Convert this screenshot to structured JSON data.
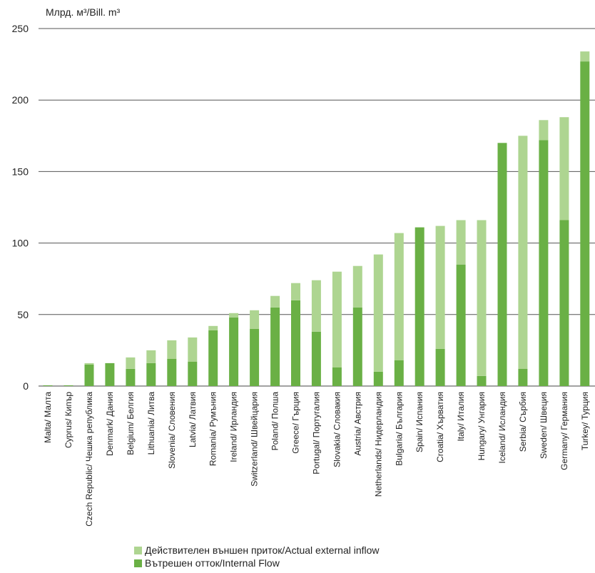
{
  "chart_data": {
    "type": "bar",
    "stacked": true,
    "ylabel": "Млрд. м³/Bill. m³",
    "ylim": [
      0,
      250
    ],
    "yticks": [
      0,
      50,
      100,
      150,
      200,
      250
    ],
    "grid": true,
    "legend_position": "bottom",
    "categories": [
      "Malta/ Малта",
      "Cyprus/ Кипър",
      "Czech Republic/ Чешка република",
      "Denmark/ Дания",
      "Belgium/ Белгия",
      "Lithuania/ Литва",
      "Slovenia/ Словения",
      "Latvia/ Латвия",
      "Romania/ Румъния",
      "Ireland/ Ирландия",
      "Switzerland/ Швейцария",
      "Poland/ Полша",
      "Greece/ Гърция",
      "Portugal/ Португалия",
      "Slovakia/ Словакия",
      "Austria/ Австрия",
      "Netherlands/ Нидерландия",
      "Bulgaria/ България",
      "Spain/ Испания",
      "Croatia/ Хърватия",
      "Italy/ Италия",
      "Hungary/ Унгария",
      "Iceland/ Исландия",
      "Serbia/ Сърбия",
      "Sweden/ Швеция",
      "Germany/ Германия",
      "Turkey/ Турция"
    ],
    "series": [
      {
        "name": "Вътрешен отток/Internal Flow",
        "color": "#6ab045",
        "values": [
          0.5,
          0.5,
          15,
          16,
          12,
          16,
          19,
          17,
          39,
          48,
          40,
          55,
          60,
          38,
          13,
          55,
          10,
          18,
          111,
          26,
          85,
          7,
          170,
          12,
          172,
          116,
          227
        ]
      },
      {
        "name": "Действителен външен приток/Actual external inflow",
        "color": "#aed591",
        "values": [
          0,
          0,
          1,
          0,
          8,
          9,
          13,
          17,
          3,
          3,
          13,
          8,
          12,
          36,
          67,
          29,
          82,
          89,
          0,
          86,
          31,
          109,
          0,
          163,
          14,
          72,
          7
        ]
      }
    ]
  },
  "legend": {
    "items": [
      {
        "label": "Действителен външен приток/Actual external inflow",
        "color": "#aed591"
      },
      {
        "label": "Вътрешен отток/Internal Flow",
        "color": "#6ab045"
      }
    ]
  }
}
